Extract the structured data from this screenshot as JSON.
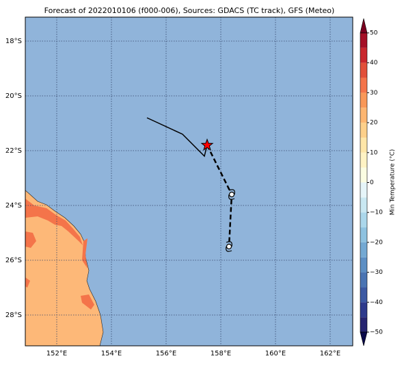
{
  "chart_data": {
    "type": "map",
    "title": "Forecast of 2022010106 (f000-006), Sources: GDACS (TC track), GFS (Meteo)",
    "xlim": [
      150.85,
      162.825
    ],
    "ylim": [
      -29.125,
      -17.125
    ],
    "xticks": [
      {
        "value": 152,
        "label": "152°E"
      },
      {
        "value": 154,
        "label": "154°E"
      },
      {
        "value": 156,
        "label": "156°E"
      },
      {
        "value": 158,
        "label": "158°E"
      },
      {
        "value": 160,
        "label": "160°E"
      },
      {
        "value": 162,
        "label": "162°E"
      }
    ],
    "yticks": [
      {
        "value": -18,
        "label": "18°S"
      },
      {
        "value": -20,
        "label": "20°S"
      },
      {
        "value": -22,
        "label": "22°S"
      },
      {
        "value": -24,
        "label": "24°S"
      },
      {
        "value": -26,
        "label": "26°S"
      },
      {
        "value": -28,
        "label": "28°S"
      }
    ],
    "grid": true,
    "track": {
      "past": {
        "lon": [
          155.3,
          156.6,
          157.4,
          157.5
        ],
        "lat": [
          -20.8,
          -21.4,
          -22.2,
          -21.8
        ]
      },
      "current": {
        "lon": 157.5,
        "lat": -21.8,
        "color": "#ff0000"
      },
      "forecast": {
        "lon": [
          157.5,
          158.4,
          158.3
        ],
        "lat": [
          -21.8,
          -23.6,
          -25.5
        ]
      }
    },
    "colorbar": {
      "label": "Min Temperature (°C)",
      "ticks": [
        {
          "value": -50,
          "label": "−50"
        },
        {
          "value": -40,
          "label": "−40"
        },
        {
          "value": -30,
          "label": "−30"
        },
        {
          "value": -20,
          "label": "−20"
        },
        {
          "value": -10,
          "label": "−10"
        },
        0,
        10,
        20,
        30,
        40,
        50
      ],
      "levels": [
        -50,
        -45,
        -40,
        -35,
        -30,
        -25,
        -20,
        -15,
        -10,
        -5,
        0,
        5,
        10,
        15,
        20,
        25,
        30,
        35,
        40,
        45,
        50
      ],
      "colors": [
        "#262470",
        "#2e3a8c",
        "#3c59a3",
        "#4a74b3",
        "#5d8fc4",
        "#74a9d3",
        "#8ec2e0",
        "#abd7eb",
        "#c9e8f2",
        "#e6f5f9",
        "#fbfde2",
        "#fff3c4",
        "#fee6a8",
        "#fdd08a",
        "#fdb671",
        "#f99858",
        "#f4744a",
        "#e2503a",
        "#c9272d",
        "#a50f26"
      ],
      "under": "#0a0a4a",
      "over": "#7a0020"
    }
  }
}
